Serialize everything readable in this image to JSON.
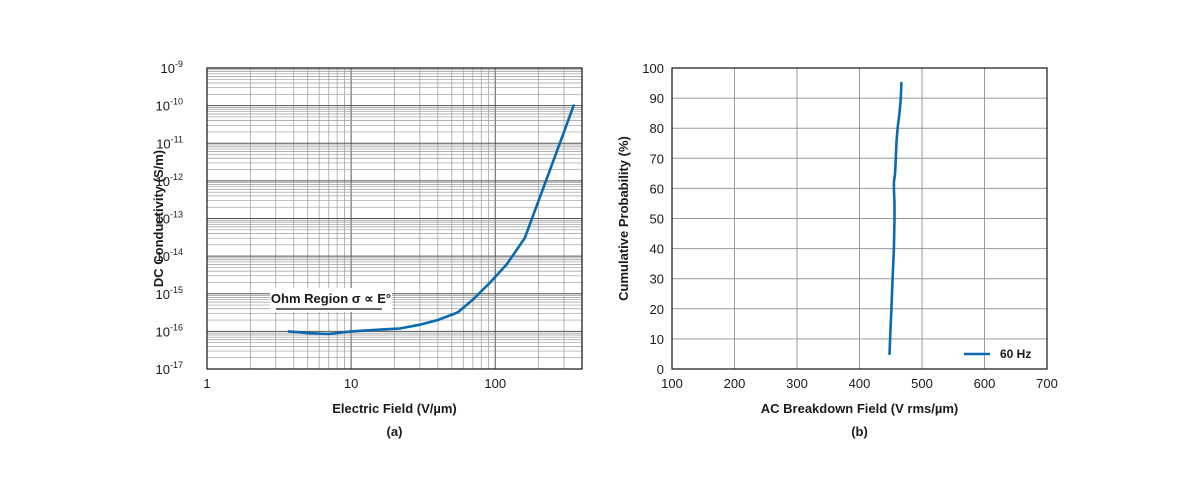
{
  "chart_data": [
    {
      "type": "line",
      "caption": "(a)",
      "xlabel": "Electric Field (V/µm)",
      "ylabel": "DC Conductivity (S/m)",
      "x_scale": "log",
      "y_scale": "log",
      "xlim": [
        1,
        400
      ],
      "ylim": [
        1e-17,
        1e-09
      ],
      "x_tick_values": [
        1,
        10,
        100
      ],
      "x_tick_labels": [
        "1",
        "10",
        "100"
      ],
      "y_tick_exponents": [
        -17,
        -16,
        -15,
        -14,
        -13,
        -12,
        -11,
        -10,
        -9
      ],
      "y_tick_base": "10",
      "grid": true,
      "annotation": "Ohm Region σ ∝ E°",
      "color": "#0a6ab0",
      "series": [
        {
          "x": [
            3.7,
            5,
            7,
            10,
            15,
            22,
            30,
            40,
            55,
            70,
            90,
            120,
            160,
            220,
            300,
            350
          ],
          "y": [
            1e-16,
            9e-17,
            8.5e-17,
            1e-16,
            1.1e-16,
            1.2e-16,
            1.5e-16,
            2e-16,
            3.2e-16,
            7e-16,
            1.8e-15,
            6e-15,
            3e-14,
            8e-13,
            2e-11,
            1e-10
          ]
        }
      ]
    },
    {
      "type": "line",
      "caption": "(b)",
      "xlabel": "AC Breakdown Field (V rms/µm)",
      "ylabel": "Cumulative Probability (%)",
      "xlim": [
        100,
        700
      ],
      "ylim": [
        0,
        100
      ],
      "x_ticks": [
        100,
        200,
        300,
        400,
        500,
        600,
        700
      ],
      "y_ticks": [
        0,
        10,
        20,
        30,
        40,
        50,
        60,
        70,
        80,
        90,
        100
      ],
      "grid": true,
      "legend_position": "bottom-right",
      "color": "#0a6ab0",
      "series": [
        {
          "name": "60 Hz",
          "x": [
            448,
            449,
            451,
            453,
            455,
            456,
            456,
            455,
            455,
            457,
            458,
            459,
            461,
            464,
            466,
            467
          ],
          "y": [
            5,
            10,
            20,
            30,
            40,
            50,
            55,
            60,
            62,
            65,
            70,
            75,
            80,
            85,
            90,
            95
          ]
        }
      ]
    }
  ]
}
